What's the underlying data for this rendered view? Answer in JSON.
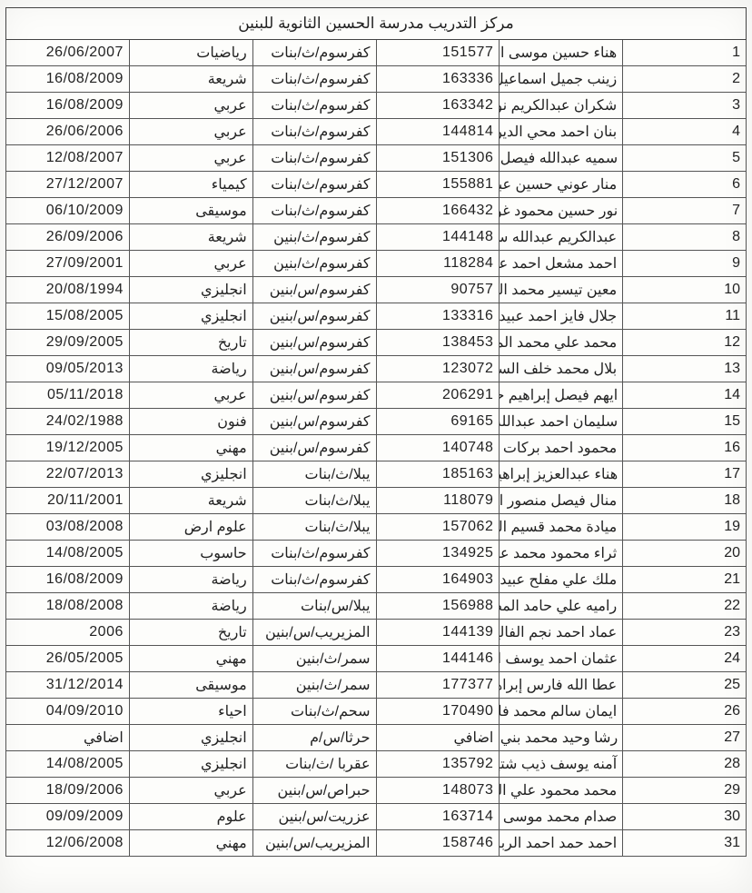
{
  "title": "مركز التدريب مدرسة الحسين الثانوية للبنين",
  "columns": [
    "num",
    "name",
    "id",
    "school",
    "subject",
    "date"
  ],
  "colClasses": [
    "col-num",
    "col-name",
    "col-id",
    "col-school",
    "col-subj",
    "col-date"
  ],
  "rows": [
    {
      "num": "1",
      "name": "هناء حسين موسى النعيمي",
      "id": "151577",
      "school": "كفرسوم/ث/بنات",
      "subject": "رياضيات",
      "date": "26/06/2007"
    },
    {
      "num": "2",
      "name": "زينب جميل اسماعيل صوالحة",
      "id": "163336",
      "school": "كفرسوم/ث/بنات",
      "subject": "شريعة",
      "date": "16/08/2009"
    },
    {
      "num": "3",
      "name": "شكران عبدالكريم نوفان عبيدات",
      "id": "163342",
      "school": "كفرسوم/ث/بنات",
      "subject": "عربي",
      "date": "16/08/2009"
    },
    {
      "num": "4",
      "name": "بنان احمد محي الدين عبيدات",
      "id": "144814",
      "school": "كفرسوم/ث/بنات",
      "subject": "عربي",
      "date": "26/06/2006"
    },
    {
      "num": "5",
      "name": "سميه عبدالله فيصل عبيدات",
      "id": "151306",
      "school": "كفرسوم/ث/بنات",
      "subject": "عربي",
      "date": "12/08/2007"
    },
    {
      "num": "6",
      "name": "منار عوني حسين عبيدات",
      "id": "155881",
      "school": "كفرسوم/ث/بنات",
      "subject": "كيمياء",
      "date": "27/12/2007"
    },
    {
      "num": "7",
      "name": "نور حسين محمود غوانمة",
      "id": "166432",
      "school": "كفرسوم/ث/بنات",
      "subject": "موسيقى",
      "date": "06/10/2009"
    },
    {
      "num": "8",
      "name": "عبدالكريم عبدالله سليمان الرفاعي",
      "id": "144148",
      "school": "كفرسوم/ث/بنين",
      "subject": "شريعة",
      "date": "26/09/2006"
    },
    {
      "num": "9",
      "name": "احمد مشعل احمد عبيدات",
      "id": "118284",
      "school": "كفرسوم/ث/بنين",
      "subject": "عربي",
      "date": "27/09/2001"
    },
    {
      "num": "10",
      "name": "معين تيسير محمد الحوراني",
      "id": "90757",
      "school": "كفرسوم/س/بنين",
      "subject": "انجليزي",
      "date": "20/08/1994"
    },
    {
      "num": "11",
      "name": "جلال فايز احمد عبيدات",
      "id": "133316",
      "school": "كفرسوم/س/بنين",
      "subject": "انجليزي",
      "date": "15/08/2005"
    },
    {
      "num": "12",
      "name": "محمد علي محمد المقبل",
      "id": "138453",
      "school": "كفرسوم/س/بنين",
      "subject": "تاريخ",
      "date": "29/09/2005"
    },
    {
      "num": "13",
      "name": "بلال محمد خلف السمير",
      "id": "123072",
      "school": "كفرسوم/س/بنين",
      "subject": "رياضة",
      "date": "09/05/2013"
    },
    {
      "num": "14",
      "name": "ايهم فيصل إبراهيم حمادنة",
      "id": "206291",
      "school": "كفرسوم/س/بنين",
      "subject": "عربي",
      "date": "05/11/2018"
    },
    {
      "num": "15",
      "name": "سليمان احمد عبدالله حجات",
      "id": "69165",
      "school": "كفرسوم/س/بنين",
      "subject": "فنون",
      "date": "24/02/1988"
    },
    {
      "num": "16",
      "name": "محمود احمد بركات عبيدات",
      "id": "140748",
      "school": "كفرسوم/س/بنين",
      "subject": "مهني",
      "date": "19/12/2005"
    },
    {
      "num": "17",
      "name": "هناء عبدالعزيز إبراهيم عبدالله",
      "id": "185163",
      "school": "يبلا/ث/بنات",
      "subject": "انجليزي",
      "date": "22/07/2013"
    },
    {
      "num": "18",
      "name": "منال فيصل منصور النعمان",
      "id": "118079",
      "school": "يبلا/ث/بنات",
      "subject": "شريعة",
      "date": "20/11/2001"
    },
    {
      "num": "19",
      "name": "ميادة محمد قسيم الصغير",
      "id": "157062",
      "school": "يبلا/ث/بنات",
      "subject": "علوم ارض",
      "date": "03/08/2008"
    },
    {
      "num": "20",
      "name": "ثراء محمود محمد عبيدات",
      "id": "134925",
      "school": "كفرسوم/ث/بنات",
      "subject": "حاسوب",
      "date": "14/08/2005"
    },
    {
      "num": "21",
      "name": "ملك علي مفلح عبيدات",
      "id": "164903",
      "school": "كفرسوم/ث/بنات",
      "subject": "رياضة",
      "date": "16/08/2009"
    },
    {
      "num": "22",
      "name": "راميه علي حامد المطلق",
      "id": "156988",
      "school": "يبلا/س/بنات",
      "subject": "رياضة",
      "date": "18/08/2008"
    },
    {
      "num": "23",
      "name": "عماد احمد نجم الفالح",
      "id": "144139",
      "school": "المزيريب/س/بنين",
      "subject": "تاريخ",
      "date": "2006"
    },
    {
      "num": "24",
      "name": "عثمان احمد يوسف الرحاحله",
      "id": "144146",
      "school": "سمر/ث/بنين",
      "subject": "مهني",
      "date": "26/05/2005"
    },
    {
      "num": "25",
      "name": "عطا الله فارس إبراهيم الشوحه",
      "id": "177377",
      "school": "سمر/ث/بنين",
      "subject": "موسيقى",
      "date": "31/12/2014"
    },
    {
      "num": "26",
      "name": "ايمان سالم محمد فارس",
      "id": "170490",
      "school": "سحم/ث/بنات",
      "subject": "احياء",
      "date": "04/09/2010"
    },
    {
      "num": "27",
      "name": "رشا وحيد محمد بني هاني",
      "id": "اضافي",
      "school": "حرثا/س/م",
      "subject": "انجليزي",
      "date": "اضافي"
    },
    {
      "num": "28",
      "name": "آمنه يوسف ذيب شتيات",
      "id": "135792",
      "school": "عقربا /ث/بنات",
      "subject": "انجليزي",
      "date": "14/08/2005"
    },
    {
      "num": "29",
      "name": "محمد محمود علي العمري",
      "id": "148073",
      "school": "حبراص/س/بنين",
      "subject": "عربي",
      "date": "18/09/2006"
    },
    {
      "num": "30",
      "name": "صدام محمد موسى الخطيب",
      "id": "163714",
      "school": "عزريت/س/بنين",
      "subject": "علوم",
      "date": "09/09/2009"
    },
    {
      "num": "31",
      "name": "احمد حمد احمد الربابعه",
      "id": "158746",
      "school": "المزيريب/س/بنين",
      "subject": "مهني",
      "date": "12/06/2008"
    }
  ]
}
